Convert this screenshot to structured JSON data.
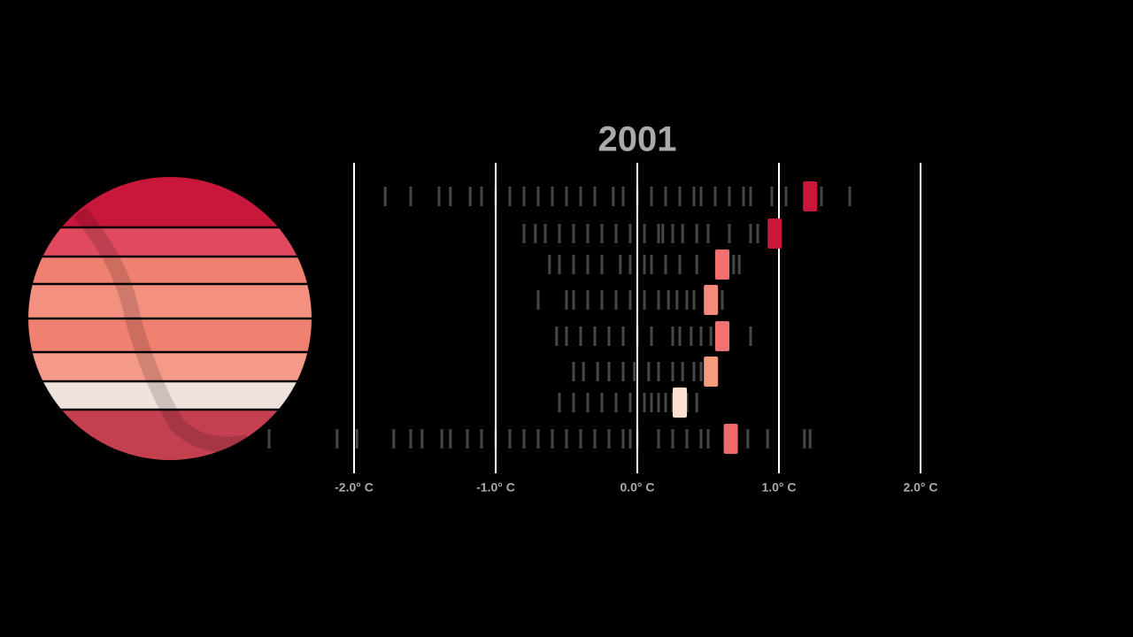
{
  "chart_data": {
    "type": "strip",
    "title": "2001",
    "xlim": [
      -2.6,
      2.6
    ],
    "xticks": [
      {
        "value": -2,
        "label": "-2.0° C"
      },
      {
        "value": -1,
        "label": "-1.0° C"
      },
      {
        "value": 0,
        "label": "0.0° C"
      },
      {
        "value": 1,
        "label": "1.0° C"
      },
      {
        "value": 2,
        "label": "2.0° C"
      }
    ],
    "grid": true,
    "bands": [
      {
        "value": 1.22,
        "color": "#c8173a",
        "history": [
          -1.78,
          -1.6,
          -1.4,
          -1.32,
          -1.18,
          -1.1,
          -1.0,
          -0.9,
          -0.8,
          -0.7,
          -0.6,
          -0.5,
          -0.4,
          -0.3,
          -0.17,
          -0.1,
          0.0,
          0.1,
          0.2,
          0.3,
          0.4,
          0.45,
          0.55,
          0.65,
          0.75,
          0.8,
          0.95,
          1.05,
          1.3,
          1.5
        ]
      },
      {
        "value": 0.97,
        "color": "#c8173a",
        "history": [
          -0.8,
          -0.72,
          -0.65,
          -0.55,
          -0.45,
          -0.35,
          -0.25,
          -0.15,
          -0.05,
          0.05,
          0.15,
          0.18,
          0.25,
          0.32,
          0.42,
          0.5,
          0.65,
          0.8,
          0.85
        ]
      },
      {
        "value": 0.6,
        "color": "#f07070",
        "history": [
          -0.62,
          -0.55,
          -0.45,
          -0.35,
          -0.25,
          -0.12,
          -0.05,
          0.05,
          0.1,
          0.2,
          0.3,
          0.42,
          0.68,
          0.72
        ]
      },
      {
        "value": 0.52,
        "color": "#f48a7a",
        "history": [
          -0.7,
          -0.5,
          -0.45,
          -0.35,
          -0.25,
          -0.15,
          -0.05,
          0.05,
          0.15,
          0.22,
          0.28,
          0.35,
          0.4,
          0.6
        ]
      },
      {
        "value": 0.6,
        "color": "#f27272",
        "history": [
          -0.57,
          -0.5,
          -0.4,
          -0.3,
          -0.2,
          -0.1,
          0.0,
          0.1,
          0.25,
          0.3,
          0.38,
          0.45,
          0.52,
          0.8
        ]
      },
      {
        "value": 0.52,
        "color": "#f69a80",
        "history": [
          -0.45,
          -0.38,
          -0.28,
          -0.2,
          -0.1,
          -0.02,
          0.08,
          0.15,
          0.25,
          0.32,
          0.4,
          0.45,
          0.5
        ]
      },
      {
        "value": 0.3,
        "color": "#fde0d0",
        "history": [
          -0.55,
          -0.45,
          -0.35,
          -0.25,
          -0.15,
          -0.05,
          0.05,
          0.1,
          0.15,
          0.2,
          0.25,
          0.28,
          0.35,
          0.42
        ]
      },
      {
        "value": 0.66,
        "color": "#ee6a6a",
        "history": [
          -2.6,
          -2.12,
          -1.98,
          -1.72,
          -1.6,
          -1.52,
          -1.38,
          -1.32,
          -1.2,
          -1.1,
          -1.0,
          -0.9,
          -0.8,
          -0.7,
          -0.6,
          -0.5,
          -0.4,
          -0.3,
          -0.2,
          -0.1,
          -0.05,
          0.0,
          0.15,
          0.25,
          0.35,
          0.45,
          0.5,
          0.78,
          0.92,
          1.18,
          1.22
        ]
      }
    ]
  }
}
